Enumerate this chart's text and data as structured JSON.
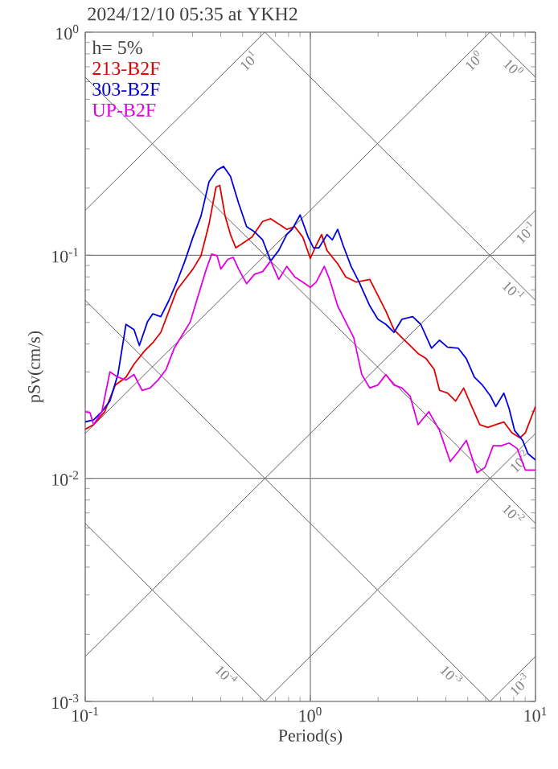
{
  "chart_data": {
    "type": "line",
    "title": "2024/12/10 05:35 at YKH2",
    "xlabel": "Period(s)",
    "ylabel": "pSv(cm/s)",
    "log": "xy",
    "grid": true,
    "legend": "top left",
    "marker": "none",
    "line_style": "solid",
    "xlim": [
      0.1,
      10
    ],
    "ylim": [
      0.001,
      1
    ],
    "xticks": [
      {
        "value": 0.1,
        "label": "10$^{-1}$"
      },
      {
        "value": 1,
        "label": "10$^{0}$"
      },
      {
        "value": 10,
        "label": "10$^{1}$"
      }
    ],
    "yticks": [
      {
        "value": 0.001,
        "label": "10$^{-3}$"
      },
      {
        "value": 0.01,
        "label": "10$^{-2}$"
      },
      {
        "value": 0.1,
        "label": "10$^{-1}$"
      },
      {
        "value": 1,
        "label": "10$^{0}$"
      }
    ],
    "annotations": [
      "h= 5%",
      {
        "text": "10$^{1}$",
        "x": 0.5,
        "y": 0.795
      },
      {
        "text": "10$^{0}$",
        "x": 5,
        "y": 0.795
      },
      {
        "text": "10$^{0}$",
        "x": 8.5,
        "y": 0.739
      },
      {
        "text": "10$^{-1}$",
        "x": 8.5,
        "y": 0.135
      },
      {
        "text": "10$^{-1}$",
        "x": 8.5,
        "y": 0.0739
      },
      {
        "text": "10$^{-2}$",
        "x": 8,
        "y": 0.0127
      },
      {
        "text": "10$^{-2}$",
        "x": 8.5,
        "y": 0.00739
      },
      {
        "text": "10$^{-4}$",
        "x": 0.45,
        "y": 0.0014
      },
      {
        "text": "10$^{-3}$",
        "x": 4.5,
        "y": 0.0014
      },
      {
        "text": "10$^{-3}$",
        "x": 8,
        "y": 0.00127
      }
    ],
    "series": [
      {
        "color": "#606060",
        "x": [
          0.1,
          0.628
        ],
        "values": [
          0.159,
          1
        ]
      },
      {
        "color": "#606060",
        "x": [
          0.1,
          6.28
        ],
        "values": [
          0.0159,
          1
        ]
      },
      {
        "color": "#606060",
        "x": [
          0.1,
          10
        ],
        "values": [
          0.00159,
          0.159
        ]
      },
      {
        "color": "#606060",
        "x": [
          0.628,
          10
        ],
        "values": [
          0.001,
          0.0159
        ]
      },
      {
        "color": "#606060",
        "x": [
          6.28,
          10
        ],
        "values": [
          0.001,
          0.00159
        ]
      },
      {
        "color": "#606060",
        "x": [
          6.28,
          10
        ],
        "values": [
          1,
          0.628
        ]
      },
      {
        "color": "#606060",
        "x": [
          0.628,
          10
        ],
        "values": [
          1,
          0.0628
        ]
      },
      {
        "color": "#606060",
        "x": [
          0.1,
          10
        ],
        "values": [
          0.628,
          0.00628
        ]
      },
      {
        "color": "#606060",
        "x": [
          0.1,
          6.28
        ],
        "values": [
          0.0628,
          0.001
        ]
      },
      {
        "color": "#606060",
        "x": [
          0.1,
          0.628
        ],
        "values": [
          0.00628,
          0.001
        ]
      },
      {
        "name": "213-B2F",
        "color": "#e00000",
        "x": [
          0.1,
          0.109,
          0.122,
          0.136,
          0.1517,
          0.1647,
          0.1837,
          0.1995,
          0.2166,
          0.2351,
          0.2553,
          0.2772,
          0.301,
          0.3267,
          0.3548,
          0.381,
          0.396,
          0.4184,
          0.4418,
          0.4667,
          0.5068,
          0.5502,
          0.6139,
          0.6665,
          0.7236,
          0.7855,
          0.8528,
          0.926,
          1.0,
          1.062,
          1.122,
          1.185,
          1.322,
          1.436,
          1.602,
          1.837,
          1.995,
          2.166,
          2.352,
          2.554,
          2.773,
          3.01,
          3.268,
          3.548,
          3.749,
          4.07,
          4.418,
          4.797,
          5.209,
          5.655,
          6.139,
          6.665,
          7.236,
          7.856,
          8.53,
          9.01,
          10
        ],
        "values": [
          0.0166,
          0.0174,
          0.0199,
          0.0262,
          0.0284,
          0.0325,
          0.0373,
          0.0405,
          0.0451,
          0.0561,
          0.0698,
          0.0779,
          0.0868,
          0.0995,
          0.138,
          0.2022,
          0.2056,
          0.1498,
          0.1238,
          0.108,
          0.1141,
          0.1205,
          0.1418,
          0.1458,
          0.138,
          0.1307,
          0.1343,
          0.1205,
          0.0968,
          0.111,
          0.1238,
          0.1051,
          0.0917,
          0.08,
          0.0758,
          0.0779,
          0.0661,
          0.0561,
          0.0464,
          0.0427,
          0.0394,
          0.0363,
          0.0344,
          0.0308,
          0.0248,
          0.0241,
          0.0222,
          0.0254,
          0.021,
          0.0174,
          0.0169,
          0.0174,
          0.0179,
          0.016,
          0.0152,
          0.016,
          0.021
        ]
      },
      {
        "name": "303-B2F",
        "color": "#0000e0",
        "x": [
          0.1,
          0.109,
          0.1185,
          0.1287,
          0.1397,
          0.1517,
          0.1647,
          0.174,
          0.189,
          0.1995,
          0.2166,
          0.2351,
          0.2553,
          0.2772,
          0.301,
          0.3267,
          0.3548,
          0.3852,
          0.4115,
          0.4418,
          0.4797,
          0.5209,
          0.5655,
          0.6139,
          0.6665,
          0.7236,
          0.7855,
          0.8298,
          0.9009,
          0.978,
          1.033,
          1.092,
          1.185,
          1.252,
          1.322,
          1.397,
          1.517,
          1.646,
          1.837,
          1.995,
          2.166,
          2.352,
          2.554,
          2.849,
          3.093,
          3.452,
          3.749,
          4.07,
          4.541,
          4.93,
          5.353,
          5.81,
          6.31,
          6.665,
          7.236,
          7.643,
          8.074,
          8.767,
          9.26,
          10
        ],
        "values": [
          0.0179,
          0.0183,
          0.0199,
          0.0222,
          0.0292,
          0.049,
          0.0464,
          0.0394,
          0.0503,
          0.0546,
          0.0531,
          0.0626,
          0.0758,
          0.0943,
          0.1205,
          0.1498,
          0.2136,
          0.2408,
          0.2502,
          0.2256,
          0.1717,
          0.1343,
          0.1272,
          0.1172,
          0.0943,
          0.1051,
          0.1238,
          0.1307,
          0.1515,
          0.1205,
          0.108,
          0.108,
          0.1238,
          0.1172,
          0.1307,
          0.111,
          0.0892,
          0.0758,
          0.0593,
          0.0517,
          0.049,
          0.0451,
          0.0517,
          0.0531,
          0.049,
          0.0383,
          0.0416,
          0.0387,
          0.0383,
          0.0344,
          0.0284,
          0.0262,
          0.0234,
          0.021,
          0.0241,
          0.0205,
          0.0164,
          0.0148,
          0.0129,
          0.0121
        ]
      },
      {
        "name": "UP-B2F",
        "color": "#e000e0",
        "x": [
          0.1,
          0.105,
          0.109,
          0.1185,
          0.1287,
          0.1397,
          0.1517,
          0.1647,
          0.1788,
          0.194,
          0.2108,
          0.2288,
          0.2485,
          0.2697,
          0.2929,
          0.3178,
          0.3452,
          0.3646,
          0.3852,
          0.4004,
          0.43,
          0.4541,
          0.4797,
          0.5209,
          0.5655,
          0.6139,
          0.6665,
          0.7236,
          0.7855,
          0.8528,
          0.926,
          1.0,
          1.062,
          1.153,
          1.218,
          1.322,
          1.436,
          1.559,
          1.692,
          1.837,
          1.995,
          2.166,
          2.352,
          2.554,
          2.773,
          3.01,
          3.358,
          3.749,
          4.182,
          4.541,
          4.93,
          5.5,
          5.972,
          6.485,
          7.04,
          7.643,
          8.299,
          9.01,
          10
        ],
        "values": [
          0.0199,
          0.0197,
          0.0174,
          0.0199,
          0.03,
          0.0284,
          0.0276,
          0.0292,
          0.0248,
          0.0254,
          0.0276,
          0.0308,
          0.0383,
          0.0439,
          0.0503,
          0.0661,
          0.0868,
          0.1012,
          0.0995,
          0.0868,
          0.0958,
          0.0979,
          0.0868,
          0.0746,
          0.0822,
          0.0845,
          0.0943,
          0.0779,
          0.0892,
          0.08,
          0.0758,
          0.0718,
          0.0758,
          0.0892,
          0.0779,
          0.0593,
          0.0503,
          0.0427,
          0.0292,
          0.0254,
          0.0262,
          0.0292,
          0.0262,
          0.0254,
          0.0234,
          0.0174,
          0.0199,
          0.0164,
          0.0119,
          0.0132,
          0.0148,
          0.0106,
          0.0112,
          0.014,
          0.014,
          0.0144,
          0.0136,
          0.0109,
          0.0109
        ]
      }
    ]
  }
}
